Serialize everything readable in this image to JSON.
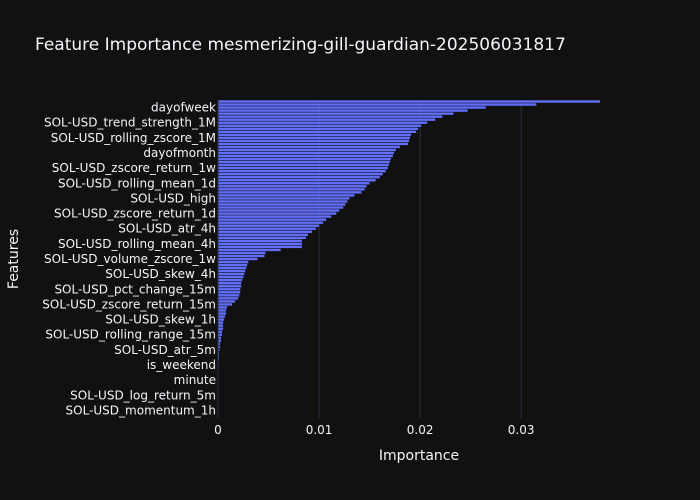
{
  "chart_data": {
    "type": "bar",
    "orientation": "horizontal",
    "title": "Feature Importance mesmerizing-gill-guardian-202506031817",
    "xlabel": "Importance",
    "ylabel": "Features",
    "xlim": [
      0,
      0.0378
    ],
    "xticks": [
      {
        "value": 0,
        "label": "0"
      },
      {
        "value": 0.01,
        "label": "0.01"
      },
      {
        "value": 0.02,
        "label": "0.02"
      },
      {
        "value": 0.03,
        "label": "0.03"
      }
    ],
    "grid": true,
    "bar_color": "#636efa",
    "n_bars": 105,
    "tick_labels": [
      {
        "index": 2,
        "label": "dayofweek"
      },
      {
        "index": 7,
        "label": "SOL-USD_trend_strength_1M"
      },
      {
        "index": 12,
        "label": "SOL-USD_rolling_zscore_1M"
      },
      {
        "index": 17,
        "label": "dayofmonth"
      },
      {
        "index": 22,
        "label": "SOL-USD_zscore_return_1w"
      },
      {
        "index": 27,
        "label": "SOL-USD_rolling_mean_1d"
      },
      {
        "index": 32,
        "label": "SOL-USD_high"
      },
      {
        "index": 37,
        "label": "SOL-USD_zscore_return_1d"
      },
      {
        "index": 42,
        "label": "SOL-USD_atr_4h"
      },
      {
        "index": 47,
        "label": "SOL-USD_rolling_mean_4h"
      },
      {
        "index": 52,
        "label": "SOL-USD_volume_zscore_1w"
      },
      {
        "index": 57,
        "label": "SOL-USD_skew_4h"
      },
      {
        "index": 62,
        "label": "SOL-USD_pct_change_15m"
      },
      {
        "index": 67,
        "label": "SOL-USD_zscore_return_15m"
      },
      {
        "index": 72,
        "label": "SOL-USD_skew_1h"
      },
      {
        "index": 77,
        "label": "SOL-USD_rolling_range_15m"
      },
      {
        "index": 82,
        "label": "SOL-USD_atr_5m"
      },
      {
        "index": 87,
        "label": "is_weekend"
      },
      {
        "index": 92,
        "label": "minute"
      },
      {
        "index": 97,
        "label": "SOL-USD_log_return_5m"
      },
      {
        "index": 102,
        "label": "SOL-USD_momentum_1h"
      }
    ],
    "values": [
      0.0378,
      0.0315,
      0.0265,
      0.0247,
      0.0233,
      0.0222,
      0.0215,
      0.0207,
      0.0201,
      0.0198,
      0.0196,
      0.0191,
      0.019,
      0.0189,
      0.0188,
      0.018,
      0.0176,
      0.0174,
      0.0173,
      0.0171,
      0.017,
      0.0169,
      0.0168,
      0.0166,
      0.0163,
      0.016,
      0.0156,
      0.015,
      0.0147,
      0.0145,
      0.0142,
      0.0135,
      0.013,
      0.0128,
      0.0126,
      0.0124,
      0.012,
      0.0117,
      0.0112,
      0.0107,
      0.0104,
      0.01,
      0.0097,
      0.0093,
      0.0089,
      0.0087,
      0.0083,
      0.0083,
      0.0083,
      0.0062,
      0.0047,
      0.0046,
      0.0039,
      0.003,
      0.0029,
      0.0028,
      0.0027,
      0.0026,
      0.0025,
      0.0024,
      0.0023,
      0.0023,
      0.0022,
      0.0022,
      0.0021,
      0.002,
      0.0017,
      0.0014,
      0.0009,
      0.0008,
      0.0008,
      0.0007,
      0.0006,
      0.0005,
      0.0005,
      0.0005,
      0.0004,
      0.0004,
      0.0003,
      0.0003,
      0.0002,
      0.0002,
      0.00015,
      0.0001,
      0.0001,
      8e-05,
      6e-05,
      5e-05,
      4e-05,
      3e-05,
      2e-05,
      2e-05,
      1e-05,
      1e-05,
      0,
      0,
      0,
      0,
      0,
      0,
      0,
      0,
      0,
      0,
      0
    ]
  }
}
